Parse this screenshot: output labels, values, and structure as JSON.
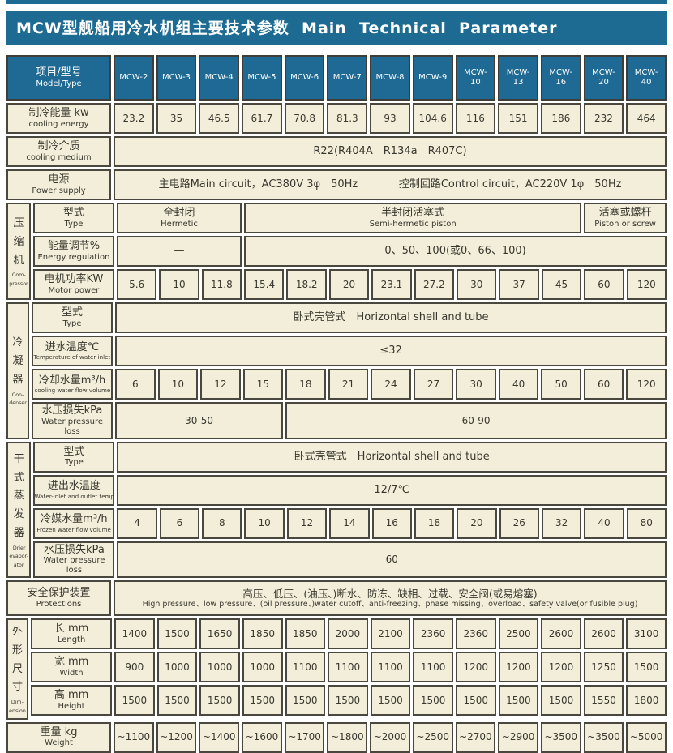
{
  "title": "MCW型舰船用冷水机组主要技术参数  Main  Technical  Parameter",
  "colors": {
    "accent_teal": "#1d6b93",
    "header_cell": "#1e6a94",
    "cell_bg": "#f2eeda",
    "border": "#4a473e",
    "text": "#3a382e"
  },
  "header": {
    "label_cn": "项目/型号",
    "label_en": "Model/Type",
    "models": [
      "MCW-2",
      "MCW-3",
      "MCW-4",
      "MCW-5",
      "MCW-6",
      "MCW-7",
      "MCW-8",
      "MCW-9",
      "MCW-10",
      "MCW-13",
      "MCW-16",
      "MCW-20",
      "MCW-40"
    ]
  },
  "cooling_energy": {
    "cn": "制冷能量 kw",
    "en": "cooling energy",
    "values": [
      "23.2",
      "35",
      "46.5",
      "61.7",
      "70.8",
      "81.3",
      "93",
      "104.6",
      "116",
      "151",
      "186",
      "232",
      "464"
    ]
  },
  "cooling_medium": {
    "cn": "制冷介质",
    "en": "cooling medium",
    "value": "R22(R404A　R134a　R407C)"
  },
  "power_supply": {
    "cn": "电源",
    "en": "Power supply",
    "main": "主电路Main circuit，AC380V 3φ　50Hz",
    "control": "控制回路Control circuit，AC220V 1φ　50Hz"
  },
  "compressor": {
    "section_cn": "压缩机",
    "section_en1": "Com-",
    "section_en2": "pressor",
    "type": {
      "cn": "型式",
      "en": "Type",
      "cells": [
        {
          "cn": "全封闭",
          "en": "Hermetic",
          "span": 3
        },
        {
          "cn": "半封闭活塞式",
          "en": "Semi-hermetic piston",
          "span": 8
        },
        {
          "cn": "活塞或螺杆",
          "en": "Piston or screw",
          "span": 2
        }
      ]
    },
    "energy_regulation": {
      "cn": "能量调节%",
      "en": "Energy regulation",
      "cells": [
        {
          "text": "—",
          "span": 3
        },
        {
          "text": "0、50、100(或0、66、100)",
          "span": 10
        }
      ]
    },
    "motor_power": {
      "cn": "电机功率KW",
      "en": "Motor power",
      "values": [
        "5.6",
        "10",
        "11.8",
        "15.4",
        "18.2",
        "20",
        "23.1",
        "27.2",
        "30",
        "37",
        "45",
        "60",
        "120"
      ]
    }
  },
  "condenser": {
    "section_cn": "冷凝器",
    "section_en1": "Con-",
    "section_en2": "denser",
    "type": {
      "cn": "型式",
      "en": "Type",
      "value": "卧式壳管式　Horizontal  shell  and  tube"
    },
    "inlet_temp": {
      "cn": "进水温度℃",
      "en": "Temperature of water inlet",
      "value": "≤32"
    },
    "water_flow": {
      "cn": "冷却水量m³/h",
      "en": "cooling water flow volume",
      "values": [
        "6",
        "10",
        "12",
        "15",
        "18",
        "21",
        "24",
        "27",
        "30",
        "40",
        "50",
        "60",
        "120"
      ]
    },
    "pressure_loss": {
      "cn": "水压损失kPa",
      "en": "Water pressure loss",
      "cells": [
        {
          "text": "30-50",
          "span": 4
        },
        {
          "text": "60-90",
          "span": 9
        }
      ]
    }
  },
  "evaporator": {
    "section_cn": "干式蒸发器",
    "section_en1": "Drier",
    "section_en2": "evapor-",
    "section_en3": "ator",
    "type": {
      "cn": "型式",
      "en": "Type",
      "value": "卧式壳管式　Horizontal  shell  and  tube"
    },
    "inout_temp": {
      "cn": "进出水温度",
      "en": "Water-inlet and outlet temp",
      "value": "12/7℃"
    },
    "water_flow": {
      "cn": "冷媒水量m³/h",
      "en": "Frozen water flow volume",
      "values": [
        "4",
        "6",
        "8",
        "10",
        "12",
        "14",
        "16",
        "18",
        "20",
        "26",
        "32",
        "40",
        "80"
      ]
    },
    "pressure_loss": {
      "cn": "水压损失kPa",
      "en": "Water pressure loss",
      "value": "60"
    }
  },
  "protections": {
    "cn": "安全保护装置",
    "en": "Protections",
    "line1": "高压、低压、(油压、)断水、防冻、缺相、过载、安全阀(或易熔塞)",
    "line2": "High pressure、low pressure、(oil pressure、)water cutoff、anti-freezing、phase missing、overload、safety valve(or fusible plug)"
  },
  "dimension": {
    "section_cn": "外形尺寸",
    "section_en1": "Dim-",
    "section_en2": "ension",
    "length": {
      "cn": "长 mm",
      "en": "Length",
      "values": [
        "1400",
        "1500",
        "1650",
        "1850",
        "1850",
        "2000",
        "2100",
        "2360",
        "2360",
        "2500",
        "2600",
        "2600",
        "3100"
      ]
    },
    "width": {
      "cn": "宽 mm",
      "en": "Width",
      "values": [
        "900",
        "1000",
        "1000",
        "1000",
        "1100",
        "1100",
        "1100",
        "1100",
        "1200",
        "1200",
        "1200",
        "1250",
        "1500"
      ]
    },
    "height": {
      "cn": "高 mm",
      "en": "Height",
      "values": [
        "1500",
        "1500",
        "1500",
        "1500",
        "1500",
        "1500",
        "1500",
        "1500",
        "1500",
        "1500",
        "1500",
        "1550",
        "1800"
      ]
    }
  },
  "weight": {
    "cn": "重量 kg",
    "en": "Weight",
    "values": [
      "~1100",
      "~1200",
      "~1400",
      "~1600",
      "~1700",
      "~1800",
      "~2000",
      "~2500",
      "~2700",
      "~2900",
      "~3500",
      "~3500",
      "~5000"
    ]
  }
}
